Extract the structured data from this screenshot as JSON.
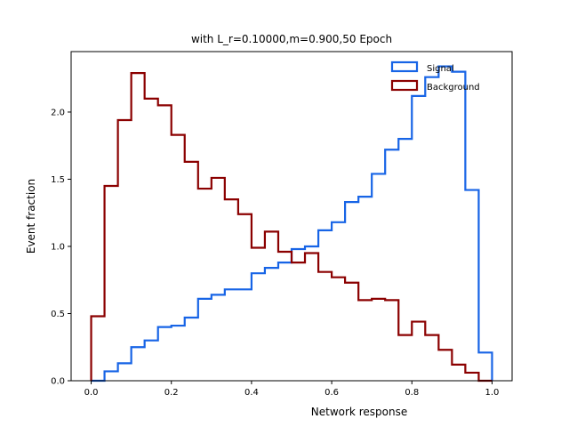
{
  "chart_data": {
    "type": "histogram",
    "title": "with L_r=0.10000,m=0.900,50 Epoch",
    "xlabel": "Network response",
    "ylabel": "Event fraction",
    "xlim": [
      -0.05,
      1.05
    ],
    "ylim": [
      0,
      2.45
    ],
    "xticks": [
      0.0,
      0.2,
      0.4,
      0.6,
      0.8,
      1.0
    ],
    "xtick_labels": [
      "0.0",
      "0.2",
      "0.4",
      "0.6",
      "0.8",
      "1.0"
    ],
    "yticks": [
      0.0,
      0.5,
      1.0,
      1.5,
      2.0
    ],
    "ytick_labels": [
      "0.0",
      "0.5",
      "1.0",
      "1.5",
      "2.0"
    ],
    "legend_position": "top-right",
    "grid": false,
    "bin_edges": [
      0.0,
      0.0333,
      0.0667,
      0.1,
      0.1333,
      0.1667,
      0.2,
      0.2333,
      0.2667,
      0.3,
      0.3333,
      0.3667,
      0.4,
      0.4333,
      0.4667,
      0.5,
      0.5333,
      0.5667,
      0.6,
      0.6333,
      0.6667,
      0.7,
      0.7333,
      0.7667,
      0.8,
      0.8333,
      0.8667,
      0.9,
      0.9333,
      0.9667,
      1.0
    ],
    "series": [
      {
        "name": "Signal",
        "color": "#1764e6",
        "values": [
          0.0,
          0.07,
          0.13,
          0.25,
          0.3,
          0.4,
          0.41,
          0.47,
          0.61,
          0.64,
          0.68,
          0.68,
          0.8,
          0.84,
          0.88,
          0.98,
          1.0,
          1.12,
          1.18,
          1.33,
          1.37,
          1.54,
          1.72,
          1.8,
          2.12,
          2.26,
          2.34,
          2.3,
          1.42,
          0.21
        ]
      },
      {
        "name": "Background",
        "color": "#8b0000",
        "values": [
          0.48,
          1.45,
          1.94,
          2.29,
          2.1,
          2.05,
          1.83,
          1.63,
          1.43,
          1.51,
          1.35,
          1.24,
          0.99,
          1.11,
          0.96,
          0.88,
          0.95,
          0.81,
          0.77,
          0.73,
          0.6,
          0.61,
          0.6,
          0.34,
          0.44,
          0.34,
          0.23,
          0.12,
          0.06,
          0.0
        ]
      }
    ]
  }
}
